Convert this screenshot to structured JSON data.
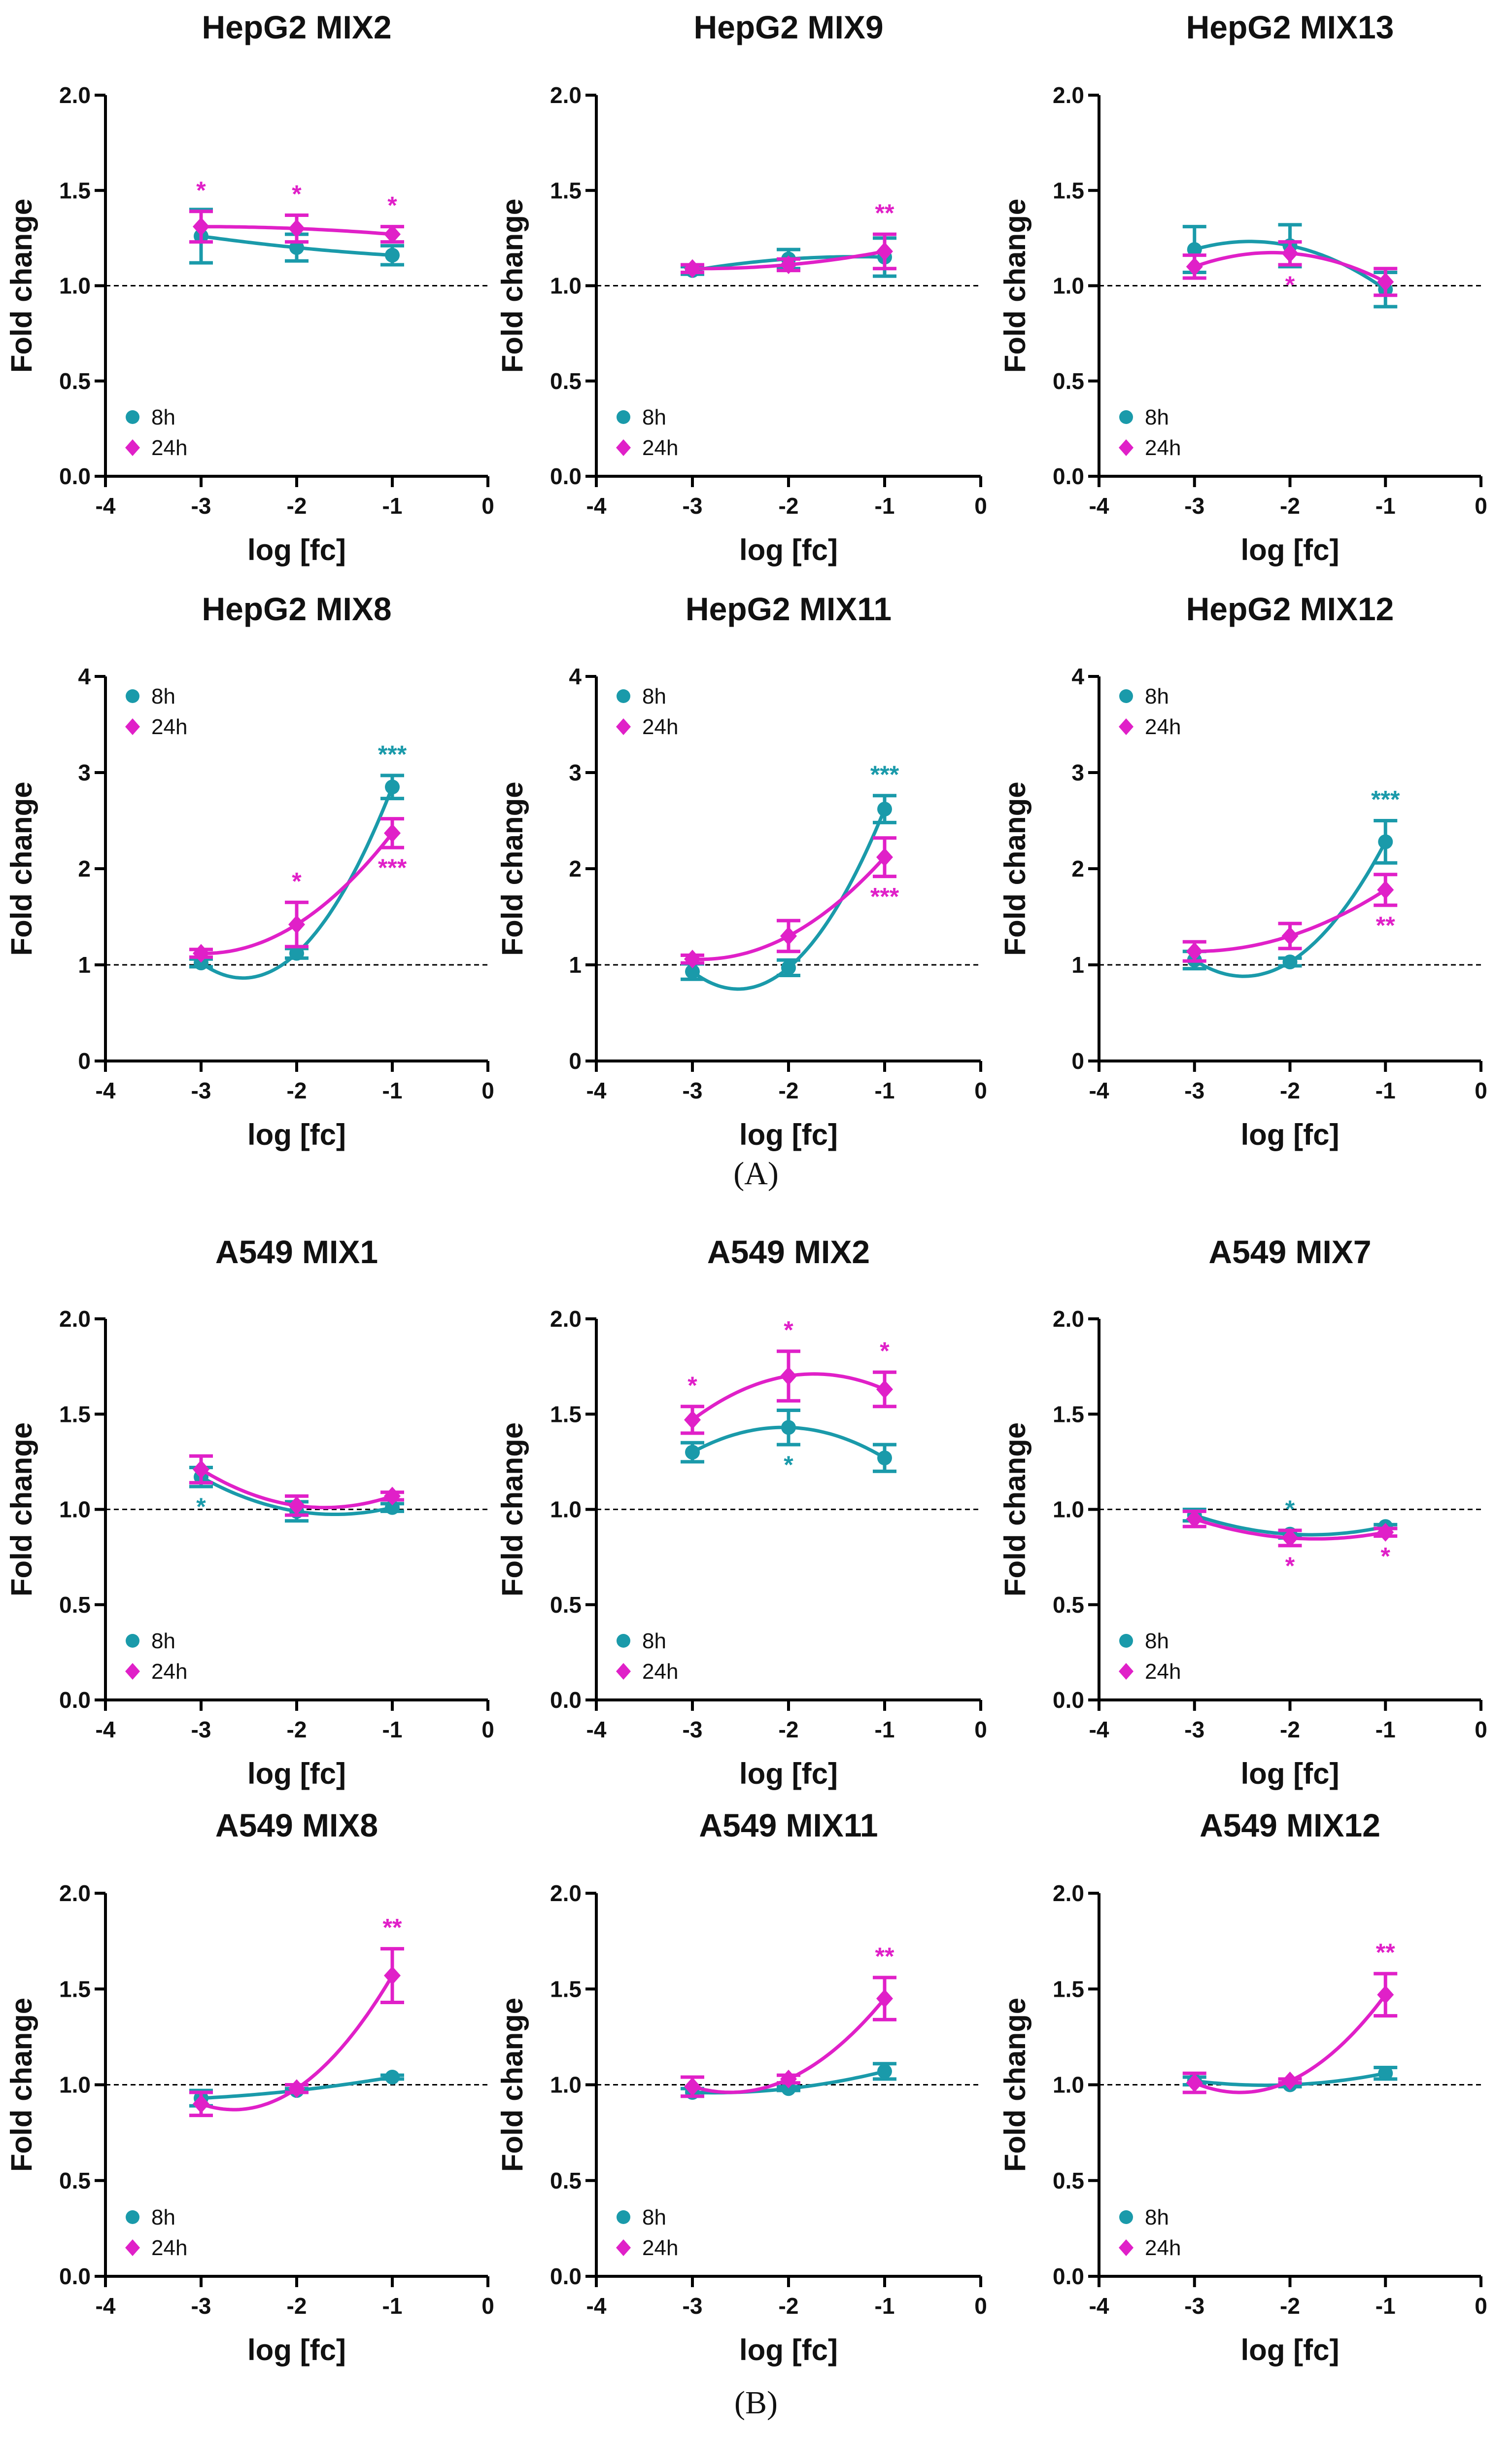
{
  "figure": {
    "panel_labels": [
      "A",
      "B"
    ],
    "panel_label_format": "(X)"
  },
  "legend": {
    "series": [
      "8h",
      "24h"
    ]
  },
  "colors": {
    "8h": "#1a9aaa",
    "24h": "#e020c8",
    "axis": "#000000",
    "refline": "#000000"
  },
  "chart_data": [
    {
      "type": "line",
      "panel": "A",
      "title": "HepG2 MIX2",
      "xlabel": "log [fc]",
      "ylabel": "Fold change",
      "xlim": [
        -4,
        0
      ],
      "ylim": [
        0,
        2
      ],
      "xticks": [
        "-4",
        "-3",
        "-2",
        "-1",
        "0"
      ],
      "yticks": [
        "0.0",
        "0.5",
        "1.0",
        "1.5",
        "2.0"
      ],
      "refline_y": 1,
      "legend_position": "bottom-left",
      "x": [
        -3,
        -2,
        -1
      ],
      "series": [
        {
          "name": "8h",
          "marker": "circle",
          "values": [
            1.26,
            1.2,
            1.16
          ],
          "errors": [
            0.14,
            0.07,
            0.05
          ],
          "signif": [
            "",
            "",
            ""
          ]
        },
        {
          "name": "24h",
          "marker": "diamond",
          "values": [
            1.31,
            1.3,
            1.27
          ],
          "errors": [
            0.08,
            0.07,
            0.04
          ],
          "signif": [
            "*",
            "*",
            "*"
          ]
        }
      ]
    },
    {
      "type": "line",
      "panel": "A",
      "title": "HepG2 MIX9",
      "xlabel": "log [fc]",
      "ylabel": "Fold change",
      "xlim": [
        -4,
        0
      ],
      "ylim": [
        0,
        2
      ],
      "xticks": [
        "-4",
        "-3",
        "-2",
        "-1",
        "0"
      ],
      "yticks": [
        "0.0",
        "0.5",
        "1.0",
        "1.5",
        "2.0"
      ],
      "refline_y": 1,
      "legend_position": "bottom-left",
      "x": [
        -3,
        -2,
        -1
      ],
      "series": [
        {
          "name": "8h",
          "marker": "circle",
          "values": [
            1.08,
            1.14,
            1.15
          ],
          "errors": [
            0.02,
            0.05,
            0.1
          ],
          "signif": [
            "",
            "",
            ""
          ]
        },
        {
          "name": "24h",
          "marker": "diamond",
          "values": [
            1.09,
            1.11,
            1.18
          ],
          "errors": [
            0.02,
            0.03,
            0.09
          ],
          "signif": [
            "",
            "",
            "**"
          ]
        }
      ]
    },
    {
      "type": "line",
      "panel": "A",
      "title": "HepG2 MIX13",
      "xlabel": "log [fc]",
      "ylabel": "Fold change",
      "xlim": [
        -4,
        0
      ],
      "ylim": [
        0,
        2
      ],
      "xticks": [
        "-4",
        "-3",
        "-2",
        "-1",
        "0"
      ],
      "yticks": [
        "0.0",
        "0.5",
        "1.0",
        "1.5",
        "2.0"
      ],
      "refline_y": 1,
      "legend_position": "bottom-left",
      "x": [
        -3,
        -2,
        -1
      ],
      "series": [
        {
          "name": "8h",
          "marker": "circle",
          "values": [
            1.19,
            1.21,
            0.98
          ],
          "errors": [
            0.12,
            0.11,
            0.09
          ],
          "signif": [
            "",
            "",
            ""
          ]
        },
        {
          "name": "24h",
          "marker": "diamond",
          "values": [
            1.1,
            1.17,
            1.02
          ],
          "errors": [
            0.06,
            0.06,
            0.07
          ],
          "signif": [
            "",
            "*",
            ""
          ]
        }
      ]
    },
    {
      "type": "line",
      "panel": "A",
      "title": "HepG2 MIX8",
      "xlabel": "log [fc]",
      "ylabel": "Fold change",
      "xlim": [
        -4,
        0
      ],
      "ylim": [
        0,
        4
      ],
      "xticks": [
        "-4",
        "-3",
        "-2",
        "-1",
        "0"
      ],
      "yticks": [
        "0",
        "1",
        "2",
        "3",
        "4"
      ],
      "refline_y": 1,
      "legend_position": "top-left",
      "x": [
        -3,
        -2,
        -1
      ],
      "series": [
        {
          "name": "8h",
          "marker": "circle",
          "values": [
            1.02,
            1.12,
            2.85
          ],
          "errors": [
            0.04,
            0.05,
            0.12
          ],
          "signif": [
            "",
            "",
            "***"
          ]
        },
        {
          "name": "24h",
          "marker": "diamond",
          "values": [
            1.12,
            1.42,
            2.37
          ],
          "errors": [
            0.04,
            0.23,
            0.15
          ],
          "signif": [
            "",
            "*",
            "***"
          ]
        }
      ]
    },
    {
      "type": "line",
      "panel": "A",
      "title": "HepG2 MIX11",
      "xlabel": "log [fc]",
      "ylabel": "Fold change",
      "xlim": [
        -4,
        0
      ],
      "ylim": [
        0,
        4
      ],
      "xticks": [
        "-4",
        "-3",
        "-2",
        "-1",
        "0"
      ],
      "yticks": [
        "0",
        "1",
        "2",
        "3",
        "4"
      ],
      "refline_y": 1,
      "legend_position": "top-left",
      "x": [
        -3,
        -2,
        -1
      ],
      "series": [
        {
          "name": "8h",
          "marker": "circle",
          "values": [
            0.93,
            0.97,
            2.62
          ],
          "errors": [
            0.08,
            0.08,
            0.14
          ],
          "signif": [
            "",
            "",
            "***"
          ]
        },
        {
          "name": "24h",
          "marker": "diamond",
          "values": [
            1.06,
            1.3,
            2.12
          ],
          "errors": [
            0.04,
            0.16,
            0.2
          ],
          "signif": [
            "",
            "",
            "***"
          ]
        }
      ]
    },
    {
      "type": "line",
      "panel": "A",
      "title": "HepG2 MIX12",
      "xlabel": "log [fc]",
      "ylabel": "Fold change",
      "xlim": [
        -4,
        0
      ],
      "ylim": [
        0,
        4
      ],
      "xticks": [
        "-4",
        "-3",
        "-2",
        "-1",
        "0"
      ],
      "yticks": [
        "0",
        "1",
        "2",
        "3",
        "4"
      ],
      "refline_y": 1,
      "legend_position": "top-left",
      "x": [
        -3,
        -2,
        -1
      ],
      "series": [
        {
          "name": "8h",
          "marker": "circle",
          "values": [
            1.05,
            1.03,
            2.28
          ],
          "errors": [
            0.09,
            0.04,
            0.22
          ],
          "signif": [
            "",
            "",
            "***"
          ]
        },
        {
          "name": "24h",
          "marker": "diamond",
          "values": [
            1.14,
            1.3,
            1.78
          ],
          "errors": [
            0.1,
            0.13,
            0.16
          ],
          "signif": [
            "",
            "",
            "**"
          ]
        }
      ]
    },
    {
      "type": "line",
      "panel": "B",
      "title": "A549 MIX1",
      "xlabel": "log [fc]",
      "ylabel": "Fold change",
      "xlim": [
        -4,
        0
      ],
      "ylim": [
        0,
        2
      ],
      "xticks": [
        "-4",
        "-3",
        "-2",
        "-1",
        "0"
      ],
      "yticks": [
        "0.0",
        "0.5",
        "1.0",
        "1.5",
        "2.0"
      ],
      "refline_y": 1,
      "legend_position": "bottom-left",
      "x": [
        -3,
        -2,
        -1
      ],
      "series": [
        {
          "name": "8h",
          "marker": "circle",
          "values": [
            1.17,
            0.99,
            1.01
          ],
          "errors": [
            0.05,
            0.05,
            0.02
          ],
          "signif": [
            "*",
            "",
            ""
          ]
        },
        {
          "name": "24h",
          "marker": "diamond",
          "values": [
            1.21,
            1.02,
            1.07
          ],
          "errors": [
            0.07,
            0.05,
            0.02
          ],
          "signif": [
            "",
            "",
            ""
          ]
        }
      ]
    },
    {
      "type": "line",
      "panel": "B",
      "title": "A549 MIX2",
      "xlabel": "log [fc]",
      "ylabel": "Fold change",
      "xlim": [
        -4,
        0
      ],
      "ylim": [
        0,
        2
      ],
      "xticks": [
        "-4",
        "-3",
        "-2",
        "-1",
        "0"
      ],
      "yticks": [
        "0.0",
        "0.5",
        "1.0",
        "1.5",
        "2.0"
      ],
      "refline_y": 1,
      "legend_position": "bottom-left",
      "x": [
        -3,
        -2,
        -1
      ],
      "series": [
        {
          "name": "8h",
          "marker": "circle",
          "values": [
            1.3,
            1.43,
            1.27
          ],
          "errors": [
            0.05,
            0.09,
            0.07
          ],
          "signif": [
            "",
            "*",
            ""
          ]
        },
        {
          "name": "24h",
          "marker": "diamond",
          "values": [
            1.47,
            1.7,
            1.63
          ],
          "errors": [
            0.07,
            0.13,
            0.09
          ],
          "signif": [
            "*",
            "*",
            "*"
          ]
        }
      ]
    },
    {
      "type": "line",
      "panel": "B",
      "title": "A549 MIX7",
      "xlabel": "log [fc]",
      "ylabel": "Fold change",
      "xlim": [
        -4,
        0
      ],
      "ylim": [
        0,
        2
      ],
      "xticks": [
        "-4",
        "-3",
        "-2",
        "-1",
        "0"
      ],
      "yticks": [
        "0.0",
        "0.5",
        "1.0",
        "1.5",
        "2.0"
      ],
      "refline_y": 1,
      "legend_position": "bottom-left",
      "x": [
        -3,
        -2,
        -1
      ],
      "series": [
        {
          "name": "8h",
          "marker": "circle",
          "values": [
            0.97,
            0.87,
            0.91
          ],
          "errors": [
            0.03,
            0.02,
            0.01
          ],
          "signif": [
            "",
            "*",
            ""
          ]
        },
        {
          "name": "24h",
          "marker": "diamond",
          "values": [
            0.95,
            0.85,
            0.88
          ],
          "errors": [
            0.04,
            0.04,
            0.02
          ],
          "signif": [
            "",
            "*",
            "*"
          ]
        }
      ]
    },
    {
      "type": "line",
      "panel": "B",
      "title": "A549 MIX8",
      "xlabel": "log [fc]",
      "ylabel": "Fold change",
      "xlim": [
        -4,
        0
      ],
      "ylim": [
        0,
        2
      ],
      "xticks": [
        "-4",
        "-3",
        "-2",
        "-1",
        "0"
      ],
      "yticks": [
        "0.0",
        "0.5",
        "1.0",
        "1.5",
        "2.0"
      ],
      "refline_y": 1,
      "legend_position": "bottom-left",
      "x": [
        -3,
        -2,
        -1
      ],
      "series": [
        {
          "name": "8h",
          "marker": "circle",
          "values": [
            0.93,
            0.97,
            1.04
          ],
          "errors": [
            0.04,
            0.01,
            0.01
          ],
          "signif": [
            "",
            "",
            ""
          ]
        },
        {
          "name": "24h",
          "marker": "diamond",
          "values": [
            0.9,
            0.98,
            1.57
          ],
          "errors": [
            0.06,
            0.02,
            0.14
          ],
          "signif": [
            "",
            "",
            "**"
          ]
        }
      ]
    },
    {
      "type": "line",
      "panel": "B",
      "title": "A549 MIX11",
      "xlabel": "log [fc]",
      "ylabel": "Fold change",
      "xlim": [
        -4,
        0
      ],
      "ylim": [
        0,
        2
      ],
      "xticks": [
        "-4",
        "-3",
        "-2",
        "-1",
        "0"
      ],
      "yticks": [
        "0.0",
        "0.5",
        "1.0",
        "1.5",
        "2.0"
      ],
      "refline_y": 1,
      "legend_position": "bottom-left",
      "x": [
        -3,
        -2,
        -1
      ],
      "series": [
        {
          "name": "8h",
          "marker": "circle",
          "values": [
            0.96,
            0.98,
            1.07
          ],
          "errors": [
            0.02,
            0.01,
            0.04
          ],
          "signif": [
            "",
            "",
            ""
          ]
        },
        {
          "name": "24h",
          "marker": "diamond",
          "values": [
            0.99,
            1.03,
            1.45
          ],
          "errors": [
            0.05,
            0.02,
            0.11
          ],
          "signif": [
            "",
            "",
            "**"
          ]
        }
      ]
    },
    {
      "type": "line",
      "panel": "B",
      "title": "A549 MIX12",
      "xlabel": "log [fc]",
      "ylabel": "Fold change",
      "xlim": [
        -4,
        0
      ],
      "ylim": [
        0,
        2
      ],
      "xticks": [
        "-4",
        "-3",
        "-2",
        "-1",
        "0"
      ],
      "yticks": [
        "0.0",
        "0.5",
        "1.0",
        "1.5",
        "2.0"
      ],
      "refline_y": 1,
      "legend_position": "bottom-left",
      "x": [
        -3,
        -2,
        -1
      ],
      "series": [
        {
          "name": "8h",
          "marker": "circle",
          "values": [
            1.02,
            1.0,
            1.06
          ],
          "errors": [
            0.02,
            0.01,
            0.03
          ],
          "signif": [
            "",
            "",
            ""
          ]
        },
        {
          "name": "24h",
          "marker": "diamond",
          "values": [
            1.01,
            1.02,
            1.47
          ],
          "errors": [
            0.05,
            0.01,
            0.11
          ],
          "signif": [
            "",
            "",
            "**"
          ]
        }
      ]
    }
  ]
}
